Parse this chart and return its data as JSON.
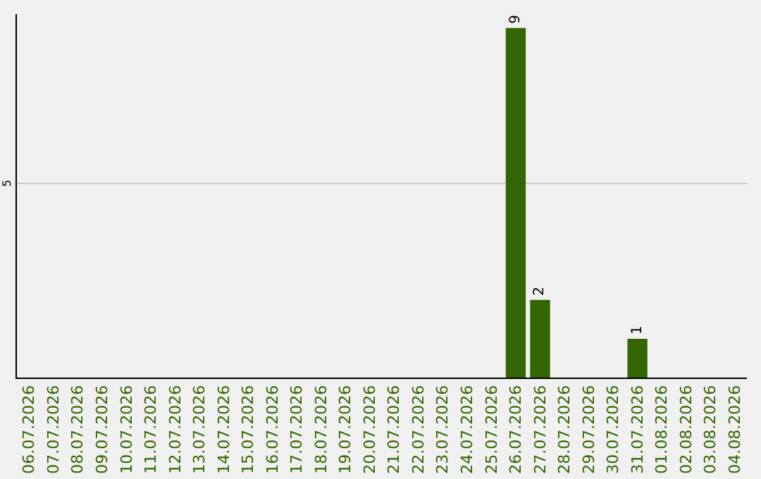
{
  "chart_data": {
    "type": "bar",
    "categories": [
      "06.07.2026",
      "07.07.2026",
      "08.07.2026",
      "09.07.2026",
      "10.07.2026",
      "11.07.2026",
      "12.07.2026",
      "13.07.2026",
      "14.07.2026",
      "15.07.2026",
      "16.07.2026",
      "17.07.2026",
      "18.07.2026",
      "19.07.2026",
      "20.07.2026",
      "21.07.2026",
      "22.07.2026",
      "23.07.2026",
      "24.07.2026",
      "25.07.2026",
      "26.07.2026",
      "27.07.2026",
      "28.07.2026",
      "29.07.2026",
      "30.07.2026",
      "31.07.2026",
      "01.08.2026",
      "02.08.2026",
      "03.08.2026",
      "04.08.2026"
    ],
    "values": [
      null,
      null,
      null,
      null,
      null,
      null,
      null,
      null,
      null,
      null,
      null,
      null,
      null,
      null,
      null,
      null,
      null,
      null,
      null,
      null,
      9,
      2,
      null,
      null,
      null,
      1,
      null,
      null,
      null,
      null
    ],
    "data_labels": true,
    "color": "#336600",
    "ylim": [
      0,
      9.36
    ],
    "ref_lines": [
      {
        "axis": "y",
        "value": 5,
        "label": "5",
        "color": "#c8c8c8"
      }
    ],
    "legend": false
  }
}
